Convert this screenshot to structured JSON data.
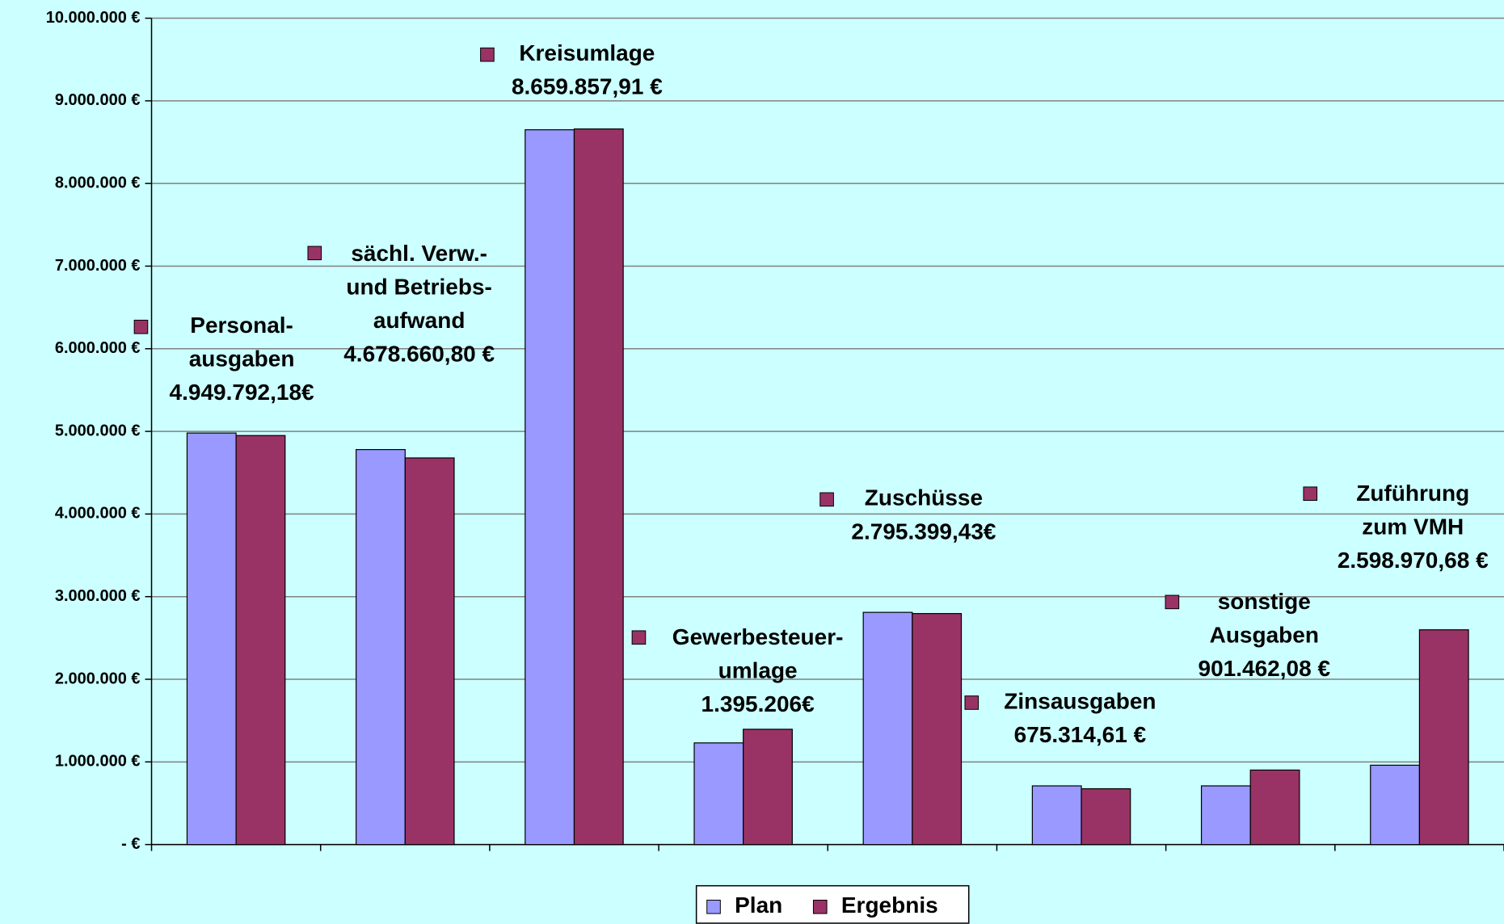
{
  "chart_data": {
    "type": "bar",
    "categories": [
      null,
      null,
      null,
      null,
      null,
      null,
      null,
      null
    ],
    "series": [
      {
        "name": "Plan",
        "color": "#9999ff",
        "values": [
          4980000,
          4780000,
          8650000,
          1230000,
          2810000,
          710000,
          710000,
          960000
        ]
      },
      {
        "name": "Ergebnis",
        "color": "#993366",
        "values": [
          4949792.18,
          4678660.8,
          8659857.91,
          1395206,
          2795399.43,
          675314.61,
          901462.08,
          2598970.68
        ],
        "value_labels": [
          [
            "Personal-",
            "ausgaben",
            "4.949.792,18€"
          ],
          [
            "sächl. Verw.-",
            "und Betriebs-",
            "aufwand",
            "4.678.660,80 €"
          ],
          [
            "Kreisumlage",
            "8.659.857,91 €"
          ],
          [
            "Gewerbesteuer-",
            "umlage",
            "1.395.206€"
          ],
          [
            "Zuschüsse",
            "2.795.399,43€"
          ],
          [
            "Zinsausgaben",
            "675.314,61 €"
          ],
          [
            "sonstige",
            "Ausgaben",
            "901.462,08 €"
          ],
          [
            "Zuführung",
            "zum VMH",
            "2.598.970,68 €"
          ]
        ]
      }
    ],
    "ylim": [
      0,
      10000000
    ],
    "yticks": [
      {
        "value": 0,
        "label": "- €"
      },
      {
        "value": 1000000,
        "label": "1.000.000 €"
      },
      {
        "value": 2000000,
        "label": "2.000.000 €"
      },
      {
        "value": 3000000,
        "label": "3.000.000 €"
      },
      {
        "value": 4000000,
        "label": "4.000.000 €"
      },
      {
        "value": 5000000,
        "label": "5.000.000 €"
      },
      {
        "value": 6000000,
        "label": "6.000.000 €"
      },
      {
        "value": 7000000,
        "label": "7.000.000 €"
      },
      {
        "value": 8000000,
        "label": "8.000.000 €"
      },
      {
        "value": 9000000,
        "label": "9.000.000 €"
      },
      {
        "value": 10000000,
        "label": "10.000.000 €"
      }
    ],
    "grid": true,
    "legend": "bottom"
  }
}
